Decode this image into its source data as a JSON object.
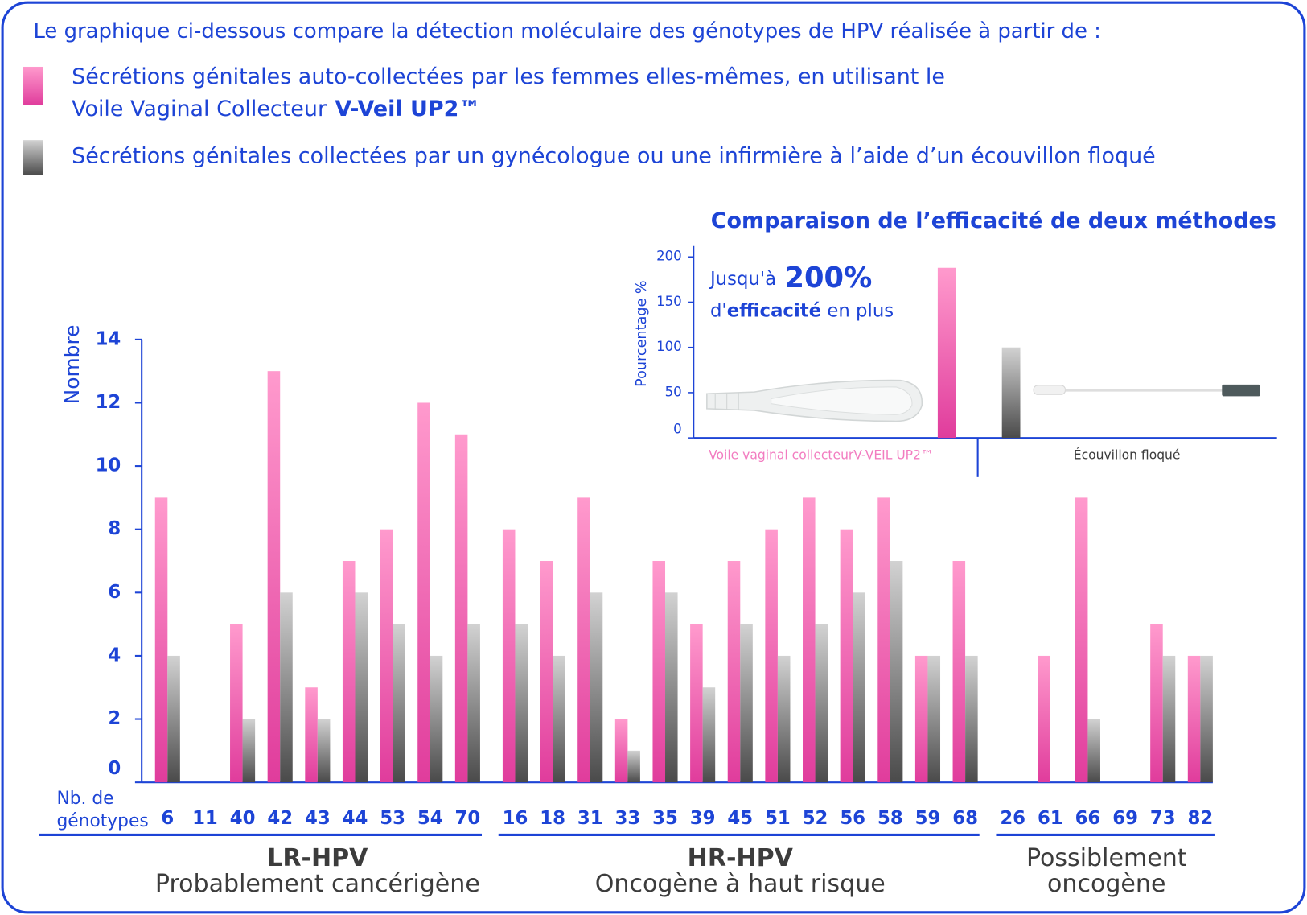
{
  "chart_data": [
    {
      "type": "bar",
      "title": "Le graphique ci-dessous compare la détection moléculaire des génotypes de HPV réalisée à partir de :",
      "ylabel": "Nombre",
      "xlabel": [
        "Nb. de",
        "génotypes"
      ],
      "ylim": [
        0,
        14
      ],
      "yticks": [
        0,
        2,
        4,
        6,
        8,
        10,
        12,
        14
      ],
      "groups": [
        {
          "title": "LR-HPV",
          "subtitle": "Probablement cancérigène",
          "title_bold": true,
          "categories": [
            "6",
            "11",
            "40",
            "42",
            "43",
            "44",
            "53",
            "54",
            "70"
          ]
        },
        {
          "title": "HR-HPV",
          "subtitle": "Oncogène à haut risque",
          "title_bold": true,
          "categories": [
            "16",
            "18",
            "31",
            "33",
            "35",
            "39",
            "45",
            "51",
            "52",
            "56",
            "58",
            "59",
            "68"
          ]
        },
        {
          "title": "Possiblement",
          "subtitle": "oncogène",
          "title_bold": false,
          "categories": [
            "26",
            "61",
            "66",
            "69",
            "73",
            "82"
          ]
        }
      ],
      "series": [
        {
          "name": "Sécrétions génitales auto-collectées par les femmes elles-mêmes, en utilisant le",
          "name_continued": "Voile Vaginal Collecteur",
          "name_bold": "V-Veil UP2™",
          "color": "#ff9acd",
          "color_bottom": "#e03c9c",
          "values": [
            9,
            0,
            5,
            13,
            3,
            7,
            8,
            12,
            11,
            8,
            7,
            9,
            2,
            7,
            5,
            7,
            8,
            9,
            8,
            9,
            4,
            7,
            0,
            4,
            9,
            0,
            5,
            4
          ]
        },
        {
          "name": "Sécrétions génitales collectées par un gynécologue ou une infirmière à l’aide d’un écouvillon floqué",
          "color": "#d2d2d2",
          "color_bottom": "#4a4a4a",
          "values": [
            4,
            0,
            2,
            6,
            2,
            6,
            5,
            4,
            5,
            5,
            4,
            6,
            1,
            6,
            3,
            5,
            4,
            5,
            6,
            7,
            4,
            4,
            0,
            0,
            2,
            0,
            4,
            4
          ]
        }
      ]
    },
    {
      "type": "bar",
      "title": "Comparaison de l’efficacité de deux méthodes",
      "ylabel": "Pourcentage %",
      "categories": [
        "Voile vaginal collecteurV-VEIL UP2™",
        "Écouvillon floqué"
      ],
      "values": [
        188,
        100
      ],
      "colors": [
        "#ff9acd",
        "#d2d2d2"
      ],
      "colors_bottom": [
        "#e03c9c",
        "#4a4a4a"
      ],
      "label_colors": [
        "#f27cc0",
        "#3c3c3c"
      ],
      "ylim": [
        0,
        200
      ],
      "yticks": [
        0,
        50,
        100,
        150,
        200
      ],
      "annotation": {
        "line1": "Jusqu'à",
        "highlight": "200%",
        "line2_start": "d'",
        "line2_bold": "efficacité",
        "line2_end": "en plus"
      }
    }
  ]
}
